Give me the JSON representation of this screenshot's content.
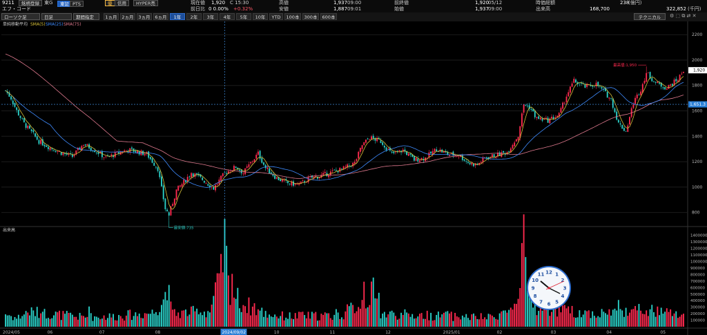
{
  "header": {
    "code": "9211",
    "company_badge": "銘柄登録",
    "market_label": "東G",
    "exchange_buttons": [
      "東証",
      "PTS"
    ],
    "feature_badge": "優",
    "feature_buttons": [
      "信用",
      "HYPER売"
    ],
    "name_line": "エフ・コード",
    "quote": [
      {
        "label": "現在値",
        "value": "1,920",
        "extra": "C 15:30"
      },
      {
        "label": "前日比",
        "value": "0 0.00%",
        "extra": "+0.32%"
      },
      {
        "label": "高値",
        "value": "1,937",
        "extra": "09:00"
      },
      {
        "label": "安値",
        "value": "1,887",
        "extra": "09:01"
      },
      {
        "label": "前終値",
        "value": "1,920",
        "extra": "05/12"
      },
      {
        "label": "始値",
        "value": "1,937",
        "extra": "09:00"
      },
      {
        "label": "時価総額",
        "value": "238",
        "extra": "(億円)"
      },
      {
        "label": "出来高",
        "value": "168,700",
        "extra": ""
      },
      {
        "label": "",
        "value": "322,852",
        "extra": "(千円)"
      }
    ]
  },
  "toolbar": {
    "chart_type": "ローソク足",
    "interval": "日足",
    "range_mode": "期間指定",
    "periods": [
      "1ヵ月",
      "2ヵ月",
      "3ヵ月",
      "6ヵ月",
      "1年",
      "2年",
      "3年",
      "4年",
      "5年",
      "10年",
      "YTD",
      "100本",
      "300本",
      "600本"
    ],
    "active_period": "1年",
    "technical_button": "テクニカル"
  },
  "legend": {
    "title": "単純移動平均",
    "sma5": "SMA(5)",
    "sma25": "SMA(25)",
    "sma75": "SMA(75)"
  },
  "colors": {
    "up": "#ff2a4f",
    "down": "#2ad0c8",
    "sma5": "#d8c23a",
    "sma25": "#3f8cff",
    "sma75": "#e07a8f",
    "crosshair": "#4aa3ff"
  },
  "price_axis": [
    "2200",
    "2000",
    "1800",
    "1600",
    "1400",
    "1200",
    "1000",
    "800"
  ],
  "current_price_tag": "1,920",
  "crosshair_price_tag": "1,651.3",
  "max_label": "最高値:1,950",
  "min_label": "最安値:735",
  "volume_title": "出来高",
  "volume_axis": [
    "1400000",
    "1300000",
    "1200000",
    "1100000",
    "1000000",
    "900000",
    "800000",
    "700000",
    "600000",
    "500000",
    "400000",
    "300000",
    "200000",
    "100000"
  ],
  "x_labels": [
    "2024/05",
    "06",
    "07",
    "08",
    "2024/09/02",
    "10",
    "11",
    "12",
    "2025/01",
    "02",
    "03",
    "04",
    "05"
  ],
  "clock_icon": "analog-clock-icon",
  "chart_data": {
    "type": "candlestick",
    "price_range": [
      700,
      2250
    ],
    "volume_range": [
      0,
      1450000
    ],
    "highlighted_date": "2024/09/02",
    "crosshair_price": 1651.3,
    "max": 1950,
    "min": 735,
    "anchors": [
      [
        0,
        1760
      ],
      [
        3,
        1700
      ],
      [
        6,
        1600
      ],
      [
        10,
        1500
      ],
      [
        18,
        1360
      ],
      [
        24,
        1310
      ],
      [
        30,
        1270
      ],
      [
        36,
        1240
      ],
      [
        42,
        1340
      ],
      [
        48,
        1290
      ],
      [
        54,
        1230
      ],
      [
        60,
        1265
      ],
      [
        66,
        1295
      ],
      [
        72,
        1275
      ],
      [
        76,
        1260
      ],
      [
        82,
        1145
      ],
      [
        86,
        830
      ],
      [
        88,
        780
      ],
      [
        92,
        975
      ],
      [
        96,
        1040
      ],
      [
        100,
        1115
      ],
      [
        106,
        1060
      ],
      [
        112,
        990
      ],
      [
        118,
        1110
      ],
      [
        124,
        1160
      ],
      [
        128,
        1110
      ],
      [
        132,
        1190
      ],
      [
        136,
        1265
      ],
      [
        140,
        1150
      ],
      [
        146,
        1070
      ],
      [
        152,
        1030
      ],
      [
        158,
        1020
      ],
      [
        164,
        1070
      ],
      [
        170,
        1090
      ],
      [
        176,
        1120
      ],
      [
        182,
        1145
      ],
      [
        188,
        1190
      ],
      [
        192,
        1330
      ],
      [
        196,
        1390
      ],
      [
        202,
        1360
      ],
      [
        208,
        1260
      ],
      [
        214,
        1290
      ],
      [
        220,
        1215
      ],
      [
        226,
        1230
      ],
      [
        232,
        1300
      ],
      [
        238,
        1260
      ],
      [
        244,
        1250
      ],
      [
        250,
        1185
      ],
      [
        254,
        1175
      ],
      [
        258,
        1230
      ],
      [
        264,
        1250
      ],
      [
        270,
        1275
      ],
      [
        276,
        1405
      ],
      [
        279,
        1650
      ],
      [
        282,
        1630
      ],
      [
        286,
        1540
      ],
      [
        292,
        1525
      ],
      [
        298,
        1570
      ],
      [
        302,
        1720
      ],
      [
        306,
        1835
      ],
      [
        312,
        1790
      ],
      [
        318,
        1810
      ],
      [
        322,
        1755
      ],
      [
        326,
        1690
      ],
      [
        330,
        1500
      ],
      [
        334,
        1440
      ],
      [
        338,
        1665
      ],
      [
        342,
        1770
      ],
      [
        345,
        1900
      ],
      [
        350,
        1820
      ],
      [
        356,
        1780
      ],
      [
        362,
        1850
      ],
      [
        365,
        1920
      ]
    ],
    "volume_anchors": [
      [
        0,
        200000
      ],
      [
        6,
        130000
      ],
      [
        12,
        230000
      ],
      [
        30,
        180000
      ],
      [
        40,
        150000
      ],
      [
        60,
        160000
      ],
      [
        80,
        220000
      ],
      [
        86,
        500000
      ],
      [
        90,
        200000
      ],
      [
        110,
        240000
      ],
      [
        116,
        780000
      ],
      [
        118,
        1300000
      ],
      [
        120,
        650000
      ],
      [
        126,
        380000
      ],
      [
        140,
        200000
      ],
      [
        150,
        160000
      ],
      [
        180,
        170000
      ],
      [
        195,
        430000
      ],
      [
        198,
        530000
      ],
      [
        202,
        200000
      ],
      [
        230,
        170000
      ],
      [
        260,
        140000
      ],
      [
        276,
        300000
      ],
      [
        279,
        1210000
      ],
      [
        281,
        600000
      ],
      [
        286,
        300000
      ],
      [
        300,
        240000
      ],
      [
        320,
        200000
      ],
      [
        332,
        260000
      ],
      [
        345,
        250000
      ],
      [
        365,
        180000
      ]
    ],
    "volume_spikes": [
      [
        20,
        230000
      ],
      [
        45,
        310000
      ],
      [
        65,
        170000
      ],
      [
        88,
        640000
      ],
      [
        104,
        190000
      ],
      [
        122,
        810000
      ],
      [
        134,
        360000
      ],
      [
        160,
        230000
      ],
      [
        178,
        270000
      ],
      [
        193,
        690000
      ],
      [
        201,
        520000
      ],
      [
        214,
        180000
      ],
      [
        238,
        240000
      ],
      [
        262,
        170000
      ],
      [
        283,
        430000
      ],
      [
        290,
        360000
      ],
      [
        312,
        250000
      ],
      [
        330,
        410000
      ],
      [
        334,
        290000
      ],
      [
        340,
        250000
      ],
      [
        355,
        230000
      ]
    ],
    "num_days": 366
  }
}
